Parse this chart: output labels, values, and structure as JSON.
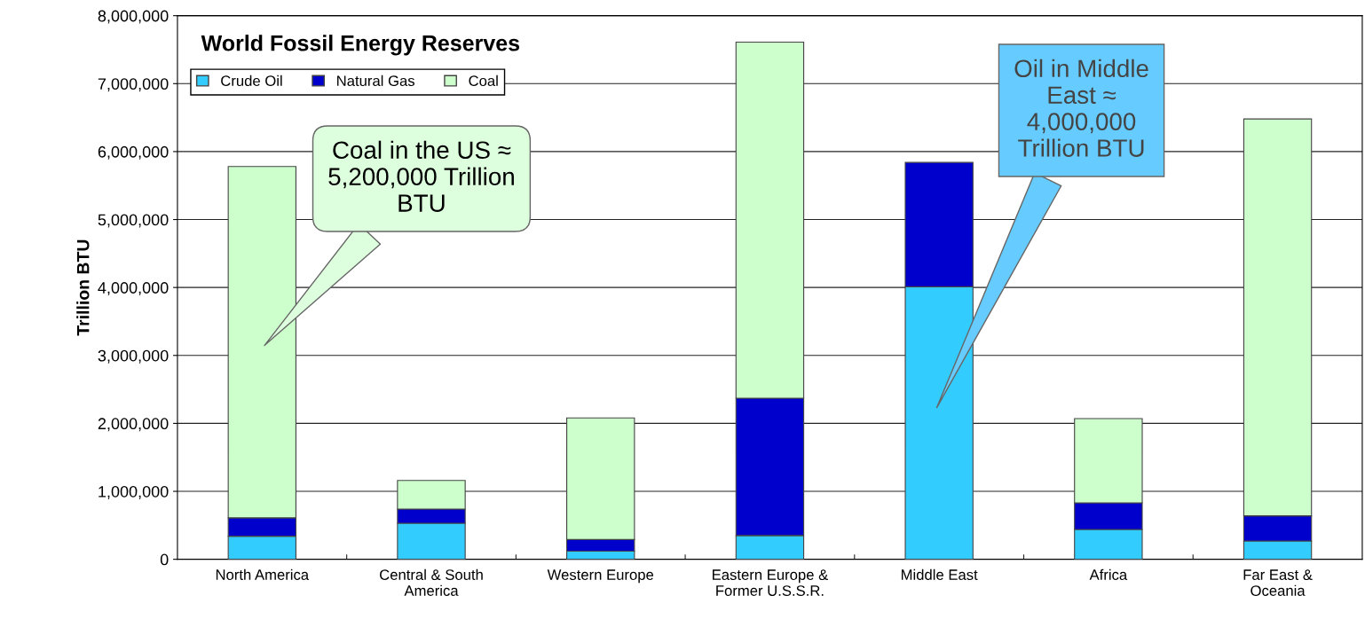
{
  "chart_data": {
    "type": "bar",
    "stacked": true,
    "title": "World Fossil Energy Reserves",
    "ylabel": "Trillion BTU",
    "categories": [
      "North America",
      "Central & South America",
      "Western Europe",
      "Eastern Europe & Former U.S.S.R.",
      "Middle East",
      "Africa",
      "Far East & Oceania"
    ],
    "series": [
      {
        "name": "Crude Oil",
        "color": "#33ccff",
        "values": [
          340000,
          530000,
          120000,
          350000,
          4010000,
          440000,
          270000
        ]
      },
      {
        "name": "Natural Gas",
        "color": "#0000cc",
        "values": [
          270000,
          210000,
          170000,
          2020000,
          1830000,
          390000,
          370000
        ]
      },
      {
        "name": "Coal",
        "color": "#ccffcc",
        "values": [
          5170000,
          420000,
          1790000,
          5240000,
          null,
          1240000,
          5840000
        ]
      }
    ],
    "ylim": [
      0,
      8000000
    ],
    "yticks": [
      {
        "value": 0,
        "label": "0"
      },
      {
        "value": 1000000,
        "label": "1,000,000"
      },
      {
        "value": 2000000,
        "label": "2,000,000"
      },
      {
        "value": 3000000,
        "label": "3,000,000"
      },
      {
        "value": 4000000,
        "label": "4,000,000"
      },
      {
        "value": 5000000,
        "label": "5,000,000"
      },
      {
        "value": 6000000,
        "label": "6,000,000"
      },
      {
        "value": 7000000,
        "label": "7,000,000"
      },
      {
        "value": 8000000,
        "label": "8,000,000"
      }
    ],
    "grid": "y",
    "legend": "top left",
    "annotations": [
      "Coal in the US ≈ 5,200,000 Trillion BTU",
      "Oil in Middle East ≈ 4,000,000 Trillion BTU"
    ]
  }
}
